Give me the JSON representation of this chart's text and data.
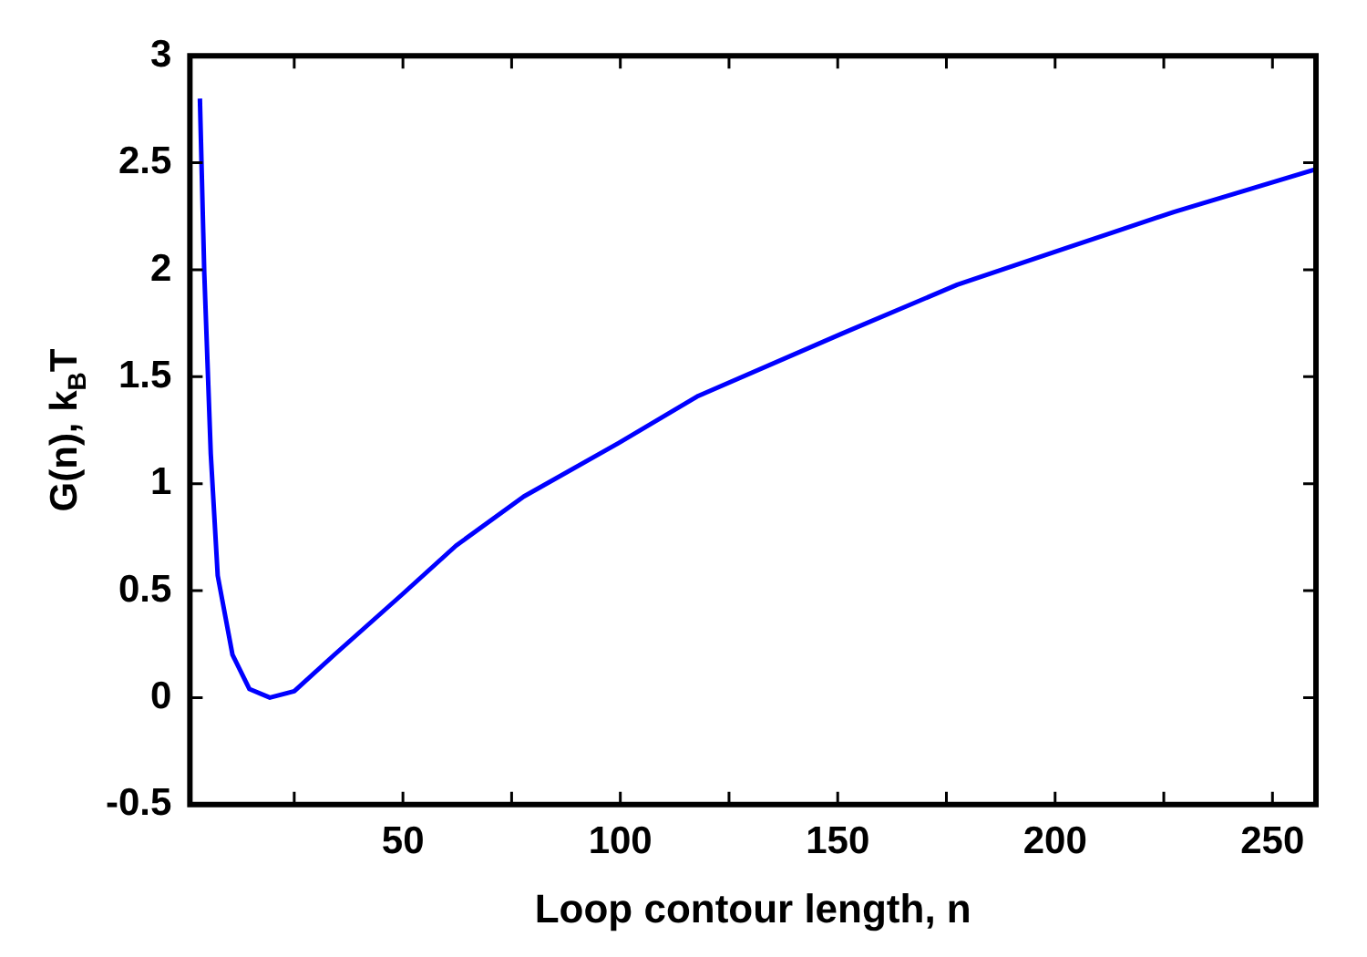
{
  "chart_data": {
    "type": "line",
    "xlabel": "Loop contour length, n",
    "ylabel": "G(n), k$_{B}$T",
    "x": [
      3.3,
      4.3,
      5.8,
      7.4,
      10.8,
      14.7,
      19.4,
      25,
      34.2,
      49.7,
      62.2,
      77.8,
      99.6,
      117.9,
      150.8,
      177.5,
      202.4,
      227.3,
      260
    ],
    "series": [
      {
        "color": "#0000ff",
        "values": [
          2.8,
          1.99,
          1.14,
          0.57,
          0.2,
          0.04,
          0.0,
          0.03,
          0.2,
          0.48,
          0.71,
          0.94,
          1.19,
          1.41,
          1.7,
          1.93,
          2.1,
          2.27,
          2.47
        ]
      }
    ],
    "xlim": [
      1,
      260
    ],
    "xticks": [
      {
        "value": 25,
        "label": null
      },
      50,
      {
        "value": 75,
        "label": null
      },
      100,
      {
        "value": 125,
        "label": null
      },
      150,
      {
        "value": 175,
        "label": null
      },
      200,
      {
        "value": 225,
        "label": null
      },
      250
    ],
    "ylim": [
      -0.5,
      3
    ],
    "yticks": [
      -0.5,
      0,
      0.5,
      1,
      1.5,
      2,
      2.5,
      3
    ],
    "grid": false,
    "legend": false,
    "marker": "none",
    "line_style": "solid"
  }
}
